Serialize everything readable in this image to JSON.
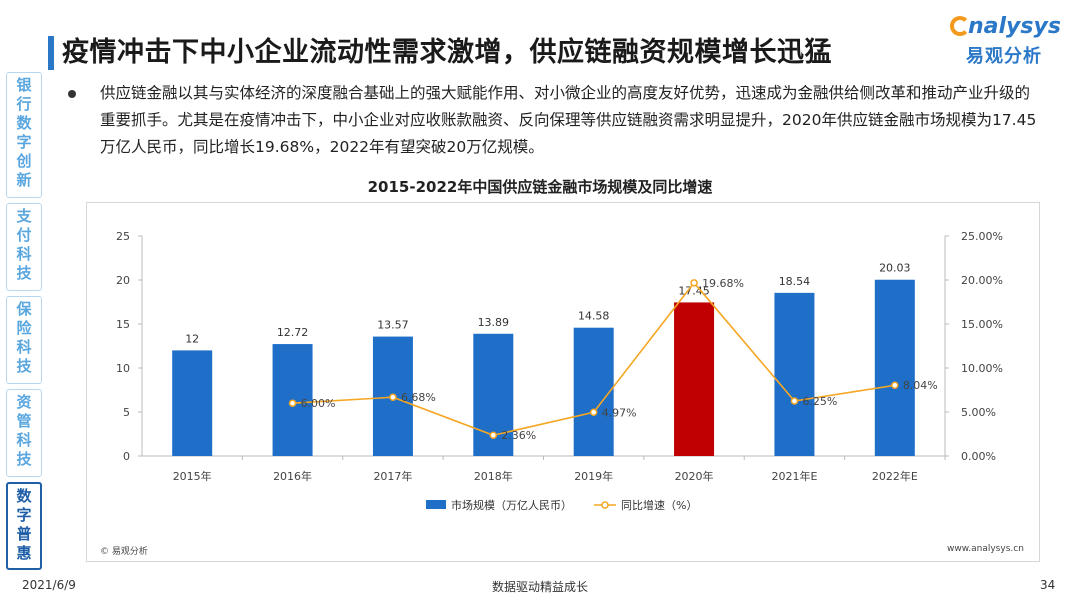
{
  "slide": {
    "title": "疫情冲击下中小企业流动性需求激增，供应链融资规模增长迅猛",
    "paragraph": "供应链金融以其与实体经济的深度融合基础上的强大赋能作用、对小微企业的高度友好优势，迅速成为金融供给侧改革和推动产业升级的重要抓手。尤其是在疫情冲击下，中小企业对应收账款融资、反向保理等供应链融资需求明显提升，2020年供应链金融市场规模为17.45万亿人民币，同比增长19.68%，2022年有望突破20万亿规模。",
    "source_left": "© 易观分析",
    "source_right": "www.analysys.cn",
    "footer_date": "2021/6/9",
    "footer_center": "数据驱动精益成长",
    "page_number": "34"
  },
  "logo": {
    "en": "nalysys",
    "cn": "易观分析",
    "brand_color": "#2c78c8",
    "accent_color": "#f39a1e"
  },
  "sidenav": {
    "items": [
      {
        "label": "银行数字创新",
        "active": false
      },
      {
        "label": "支付科技",
        "active": false
      },
      {
        "label": "保险科技",
        "active": false
      },
      {
        "label": "资管科技",
        "active": false
      },
      {
        "label": "数字普惠",
        "active": true
      }
    ]
  },
  "chart_data": {
    "type": "bar",
    "title": "2015-2022年中国供应链金融市场规模及同比增速",
    "categories": [
      "2015年",
      "2016年",
      "2017年",
      "2018年",
      "2019年",
      "2020年",
      "2021年E",
      "2022年E"
    ],
    "series": [
      {
        "name": "市场规模（万亿人民币）",
        "type": "bar",
        "axis": "left",
        "values": [
          12,
          12.72,
          13.57,
          13.89,
          14.58,
          17.45,
          18.54,
          20.03
        ],
        "labels": [
          "12",
          "12.72",
          "13.57",
          "13.89",
          "14.58",
          "17.45",
          "18.54",
          "20.03"
        ],
        "color": "#1f6fc8",
        "highlight_index": 5,
        "highlight_color": "#c00000"
      },
      {
        "name": "同比增速（%）",
        "type": "line",
        "axis": "right",
        "values": [
          null,
          6.0,
          6.68,
          2.36,
          4.97,
          19.68,
          6.25,
          8.04
        ],
        "labels": [
          "",
          "6.00%",
          "6.68%",
          "2.36%",
          "4.97%",
          "19.68%",
          "6.25%",
          "8.04%"
        ],
        "color": "#f5a623"
      }
    ],
    "y_left": {
      "min": 0,
      "max": 25,
      "ticks": [
        "0",
        "5",
        "10",
        "15",
        "20",
        "25"
      ]
    },
    "y_right": {
      "min": 0,
      "max": 25,
      "ticks": [
        "0.00%",
        "5.00%",
        "10.00%",
        "15.00%",
        "20.00%",
        "25.00%"
      ]
    },
    "legend_position": "bottom-center",
    "grid": false
  }
}
